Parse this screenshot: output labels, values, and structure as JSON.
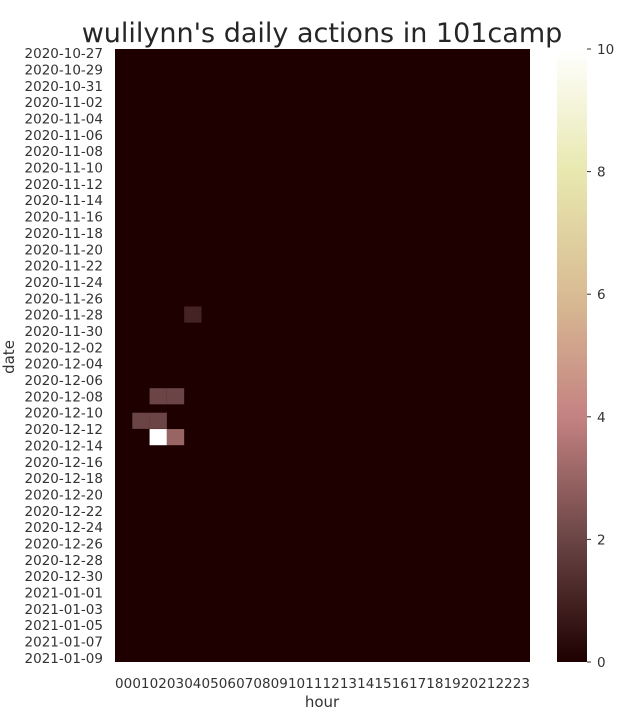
{
  "chart_data": {
    "type": "heatmap",
    "title": "wulilynn's daily actions in 101camp",
    "xlabel": "hour",
    "ylabel": "date",
    "x_categories": [
      "00",
      "01",
      "02",
      "03",
      "04",
      "05",
      "06",
      "07",
      "08",
      "09",
      "10",
      "11",
      "12",
      "13",
      "14",
      "15",
      "16",
      "17",
      "18",
      "19",
      "20",
      "21",
      "22",
      "23"
    ],
    "y_start_date": "2020-10-27",
    "y_count": 75,
    "y_tick_every": 2,
    "colorbar": {
      "min": 0,
      "max": 10,
      "ticks": [
        0,
        2,
        4,
        6,
        8,
        10
      ]
    },
    "colormap": [
      "#1e0000",
      "#6b4545",
      "#c48282",
      "#d9bc93",
      "#e8e8af",
      "#ffffff"
    ],
    "nonzero_cells": [
      {
        "date": "2020-11-28",
        "hour": "04",
        "value": 1
      },
      {
        "date": "2020-12-08",
        "hour": "02",
        "value": 2
      },
      {
        "date": "2020-12-08",
        "hour": "03",
        "value": 2
      },
      {
        "date": "2020-12-11",
        "hour": "01",
        "value": 2
      },
      {
        "date": "2020-12-11",
        "hour": "02",
        "value": 2
      },
      {
        "date": "2020-12-13",
        "hour": "02",
        "value": 10
      },
      {
        "date": "2020-12-13",
        "hour": "03",
        "value": 3
      }
    ]
  }
}
